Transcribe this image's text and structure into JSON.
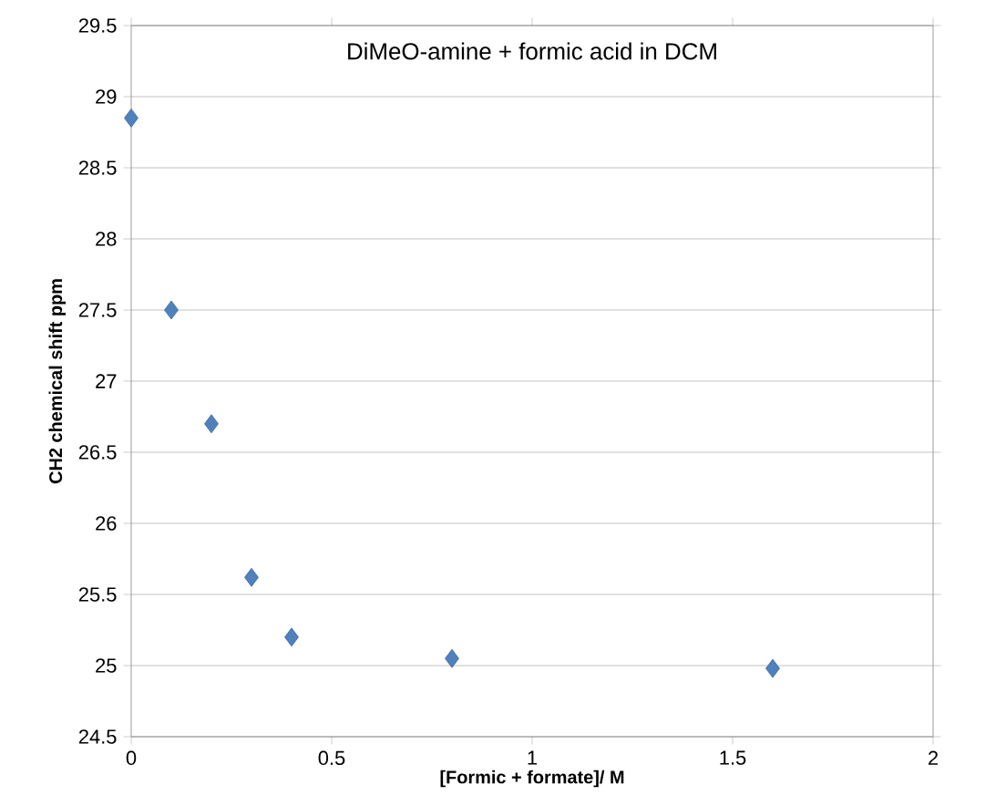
{
  "chart_data": {
    "type": "scatter",
    "title": "DiMeO-amine + formic acid in DCM",
    "xlabel": "[Formic + formate]/ M",
    "ylabel": "CH2 chemical shift ppm",
    "x": [
      0,
      0.1,
      0.2,
      0.3,
      0.4,
      0.8,
      1.6
    ],
    "values": [
      28.85,
      27.5,
      26.7,
      25.62,
      25.2,
      25.05,
      24.98
    ],
    "color": "#4f81bd",
    "marker": "diamond",
    "grid": "y",
    "xlim": [
      0,
      2
    ],
    "xticks": [
      0,
      0.5,
      1,
      1.5,
      2
    ],
    "ylim": [
      24.5,
      29.5
    ],
    "yticks": [
      24.5,
      25,
      25.5,
      26,
      26.5,
      27,
      27.5,
      28,
      28.5,
      29,
      29.5
    ]
  }
}
